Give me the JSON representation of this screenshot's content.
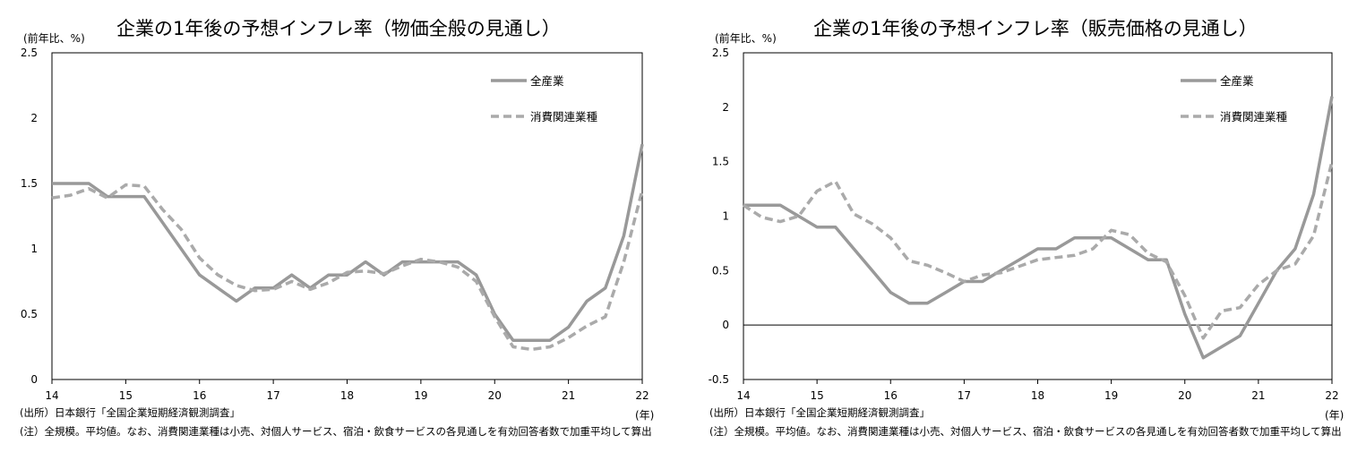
{
  "chart_data": [
    {
      "type": "line",
      "title": "企業の1年後の予想インフレ率（物価全般の見通し）",
      "ylabel": "(前年比、%)",
      "xlabel": "(年)",
      "ylim": [
        0,
        2.5
      ],
      "xlim": [
        14,
        22
      ],
      "yticks": [
        "0",
        "0.5",
        "1",
        "1.5",
        "2",
        "2.5"
      ],
      "xticks": [
        "14",
        "15",
        "16",
        "17",
        "18",
        "19",
        "20",
        "21",
        "22"
      ],
      "zero_line": false,
      "legend": "top-right",
      "series": [
        {
          "name": "全産業",
          "style": "solid",
          "color": "#999999",
          "x": [
            14,
            14.25,
            14.5,
            14.75,
            15,
            15.25,
            15.5,
            15.75,
            16,
            16.25,
            16.5,
            16.75,
            17,
            17.25,
            17.5,
            17.75,
            18,
            18.25,
            18.5,
            18.75,
            19,
            19.25,
            19.5,
            19.75,
            20,
            20.25,
            20.5,
            20.75,
            21,
            21.25,
            21.5,
            21.75,
            22
          ],
          "values": [
            1.5,
            1.5,
            1.5,
            1.4,
            1.4,
            1.4,
            1.2,
            1.0,
            0.8,
            0.7,
            0.6,
            0.7,
            0.7,
            0.8,
            0.7,
            0.8,
            0.8,
            0.9,
            0.8,
            0.9,
            0.9,
            0.9,
            0.9,
            0.8,
            0.5,
            0.3,
            0.3,
            0.3,
            0.4,
            0.6,
            0.7,
            1.1,
            1.8
          ]
        },
        {
          "name": "消費関連業種",
          "style": "dashed",
          "color": "#aaaaaa",
          "x": [
            14,
            14.25,
            14.5,
            14.75,
            15,
            15.25,
            15.5,
            15.75,
            16,
            16.25,
            16.5,
            16.75,
            17,
            17.25,
            17.5,
            17.75,
            18,
            18.25,
            18.5,
            18.75,
            19,
            19.25,
            19.5,
            19.75,
            20,
            20.25,
            20.5,
            20.75,
            21,
            21.25,
            21.5,
            21.75,
            22
          ],
          "values": [
            1.39,
            1.41,
            1.46,
            1.39,
            1.49,
            1.48,
            1.3,
            1.15,
            0.93,
            0.8,
            0.72,
            0.68,
            0.69,
            0.75,
            0.69,
            0.74,
            0.82,
            0.83,
            0.81,
            0.87,
            0.92,
            0.9,
            0.86,
            0.75,
            0.48,
            0.25,
            0.23,
            0.25,
            0.32,
            0.41,
            0.48,
            0.9,
            1.45
          ]
        }
      ]
    },
    {
      "type": "line",
      "title": "企業の1年後の予想インフレ率（販売価格の見通し）",
      "ylabel": "(前年比、%)",
      "xlabel": "(年)",
      "ylim": [
        -0.5,
        2.5
      ],
      "xlim": [
        14,
        22
      ],
      "yticks": [
        "-0.5",
        "0",
        "0.5",
        "1",
        "1.5",
        "2",
        "2.5"
      ],
      "xticks": [
        "14",
        "15",
        "16",
        "17",
        "18",
        "19",
        "20",
        "21",
        "22"
      ],
      "zero_line": true,
      "legend": "top-right",
      "series": [
        {
          "name": "全産業",
          "style": "solid",
          "color": "#999999",
          "x": [
            14,
            14.25,
            14.5,
            14.75,
            15,
            15.25,
            15.5,
            15.75,
            16,
            16.25,
            16.5,
            16.75,
            17,
            17.25,
            17.5,
            17.75,
            18,
            18.25,
            18.5,
            18.75,
            19,
            19.25,
            19.5,
            19.75,
            20,
            20.25,
            20.5,
            20.75,
            21,
            21.25,
            21.5,
            21.75,
            22
          ],
          "values": [
            1.1,
            1.1,
            1.1,
            1.0,
            0.9,
            0.9,
            0.7,
            0.5,
            0.3,
            0.2,
            0.2,
            0.3,
            0.4,
            0.4,
            0.5,
            0.6,
            0.7,
            0.7,
            0.8,
            0.8,
            0.8,
            0.7,
            0.6,
            0.6,
            0.1,
            -0.3,
            -0.2,
            -0.1,
            0.2,
            0.5,
            0.7,
            1.2,
            2.1
          ]
        },
        {
          "name": "消費関連業種",
          "style": "dashed",
          "color": "#aaaaaa",
          "x": [
            14,
            14.25,
            14.5,
            14.75,
            15,
            15.25,
            15.5,
            15.75,
            16,
            16.25,
            16.5,
            16.75,
            17,
            17.25,
            17.5,
            17.75,
            18,
            18.25,
            18.5,
            18.75,
            19,
            19.25,
            19.5,
            19.75,
            20,
            20.25,
            20.5,
            20.75,
            21,
            21.25,
            21.5,
            21.75,
            22
          ],
          "values": [
            1.1,
            0.99,
            0.95,
            1.0,
            1.23,
            1.32,
            1.02,
            0.93,
            0.8,
            0.59,
            0.55,
            0.48,
            0.4,
            0.46,
            0.48,
            0.54,
            0.6,
            0.62,
            0.64,
            0.7,
            0.87,
            0.83,
            0.66,
            0.58,
            0.27,
            -0.12,
            0.13,
            0.16,
            0.37,
            0.5,
            0.56,
            0.82,
            1.5
          ]
        }
      ]
    }
  ],
  "notes": {
    "source": "(出所）日本銀行「全国企業短期経済観測調査」",
    "remark": "(注）全規模。平均値。なお、消費関連業種は小売、対個人サービス、宿泊・飲食サービスの各見通しを有効回答者数で加重平均して算出"
  }
}
